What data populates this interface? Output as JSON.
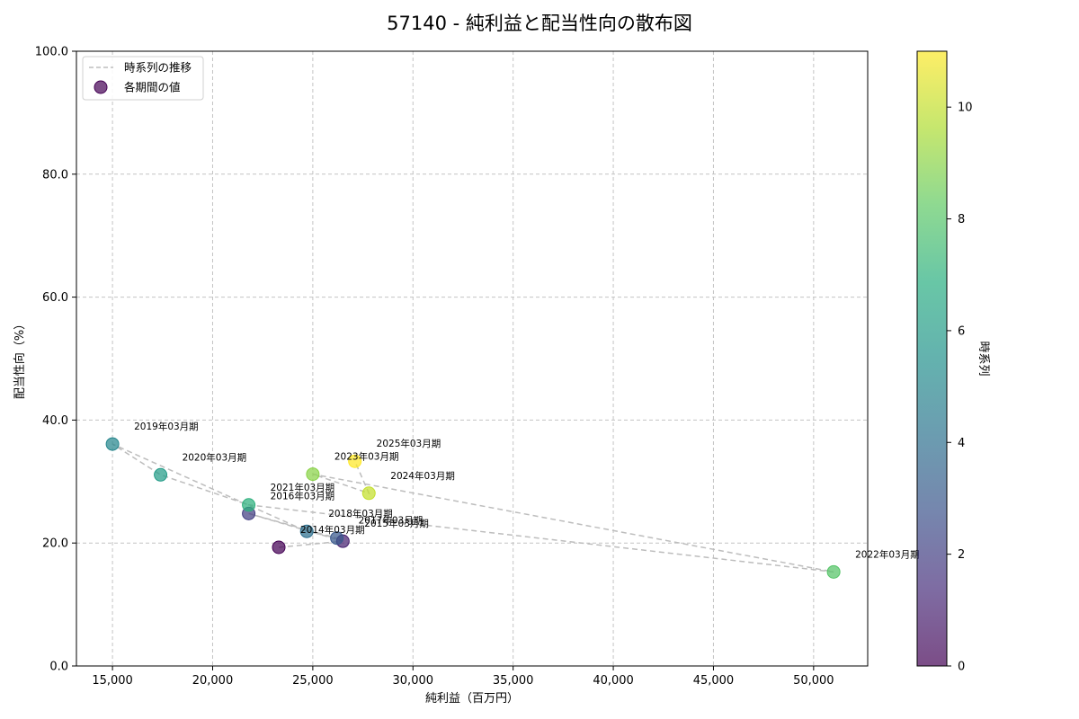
{
  "chart_data": {
    "type": "scatter",
    "title": "57140 - 純利益と配当性向の散布図",
    "xlabel": "純利益（百万円）",
    "ylabel": "配当性向（%）",
    "xlim": [
      13200,
      52700
    ],
    "ylim": [
      0,
      100
    ],
    "xticks": [
      15000,
      20000,
      25000,
      30000,
      35000,
      40000,
      45000,
      50000
    ],
    "xtick_labels": [
      "15,000",
      "20,000",
      "25,000",
      "30,000",
      "35,000",
      "40,000",
      "45,000",
      "50,000"
    ],
    "yticks": [
      0,
      20,
      40,
      60,
      80,
      100
    ],
    "ytick_labels": [
      "0.0",
      "20.0",
      "40.0",
      "60.0",
      "80.0",
      "100.0"
    ],
    "grid": true,
    "colorbar": {
      "label": "時系列",
      "range": [
        0,
        11
      ],
      "ticks": [
        0,
        2,
        4,
        6,
        8,
        10
      ],
      "tick_labels": [
        "0",
        "2",
        "4",
        "6",
        "8",
        "10"
      ],
      "colormap": "viridis"
    },
    "legend": {
      "position": "top-left",
      "entries": [
        {
          "label": "時系列の推移",
          "kind": "line"
        },
        {
          "label": "各期間の値",
          "kind": "marker"
        }
      ]
    },
    "line_color": "#bdbdbd",
    "points": [
      {
        "period": "2014年03月期",
        "x": 23300,
        "y": 19.3,
        "t": 0
      },
      {
        "period": "2015年03月期",
        "x": 26500,
        "y": 20.3,
        "t": 1
      },
      {
        "period": "2016年03月期",
        "x": 21800,
        "y": 24.8,
        "t": 2
      },
      {
        "period": "2017年03月期",
        "x": 26200,
        "y": 20.8,
        "t": 3
      },
      {
        "period": "2018年03月期",
        "x": 24700,
        "y": 21.9,
        "t": 4
      },
      {
        "period": "2019年03月期",
        "x": 15000,
        "y": 36.1,
        "t": 5
      },
      {
        "period": "2020年03月期",
        "x": 17400,
        "y": 31.1,
        "t": 6
      },
      {
        "period": "2021年03月期",
        "x": 21800,
        "y": 26.2,
        "t": 7
      },
      {
        "period": "2022年03月期",
        "x": 51000,
        "y": 15.3,
        "t": 8
      },
      {
        "period": "2023年03月期",
        "x": 25000,
        "y": 31.2,
        "t": 9
      },
      {
        "period": "2024年03月期",
        "x": 27800,
        "y": 28.1,
        "t": 10
      },
      {
        "period": "2025年03月期",
        "x": 27100,
        "y": 33.3,
        "t": 11
      }
    ]
  }
}
